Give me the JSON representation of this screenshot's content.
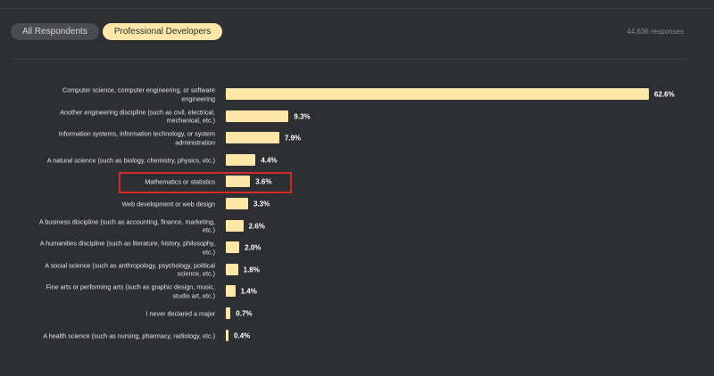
{
  "tabs": [
    {
      "label": "All Respondents",
      "active": false
    },
    {
      "label": "Professional Developers",
      "active": true
    }
  ],
  "responses": "44,636 responses",
  "colors": {
    "bar": "#fce7a9",
    "background": "#2d2f33",
    "highlight": "#d82a2a"
  },
  "chart_data": {
    "type": "bar",
    "orientation": "horizontal",
    "xlim": [
      0,
      62.6
    ],
    "categories": [
      "Computer science, computer engineering, or software engineering",
      "Another engineering discipline (such as civil, electrical, mechanical, etc.)",
      "Information systems, information technology, or system administration",
      "A natural science (such as biology, chemistry, physics, etc.)",
      "Mathematics or statistics",
      "Web development or web design",
      "A business discipline (such as accounting, finance, marketing, etc.)",
      "A humanities discipline (such as literature, history, philosophy, etc.)",
      "A social science (such as anthropology, psychology, political science, etc.)",
      "Fine arts or performing arts (such as graphic design, music, studio art, etc.)",
      "I never declared a major",
      "A health science (such as nursing, pharmacy, radiology, etc.)"
    ],
    "values": [
      62.6,
      9.3,
      7.9,
      4.4,
      3.6,
      3.3,
      2.6,
      2.0,
      1.8,
      1.4,
      0.7,
      0.4
    ],
    "value_labels": [
      "62.6%",
      "9.3%",
      "7.9%",
      "4.4%",
      "3.6%",
      "3.3%",
      "2.6%",
      "2.0%",
      "1.8%",
      "1.4%",
      "0.7%",
      "0.4%"
    ],
    "highlighted_category": "Mathematics or statistics"
  }
}
